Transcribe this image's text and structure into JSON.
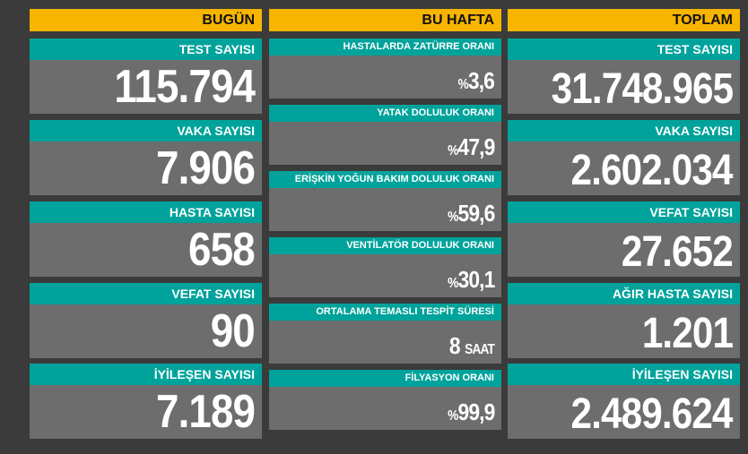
{
  "columns": [
    {
      "title": "BUGÜN",
      "cards": [
        {
          "label": "TEST SAYISI",
          "value": "115.794"
        },
        {
          "label": "VAKA SAYISI",
          "value": "7.906"
        },
        {
          "label": "HASTA SAYISI",
          "value": "658"
        },
        {
          "label": "VEFAT SAYISI",
          "value": "90"
        },
        {
          "label": "İYİLEŞEN SAYISI",
          "value": "7.189"
        }
      ]
    },
    {
      "title": "BU HAFTA",
      "cards": [
        {
          "label": "HASTALARDA ZATÜRRE ORANI",
          "prefix": "%",
          "value": "3,6"
        },
        {
          "label": "YATAK DOLULUK ORANI",
          "prefix": "%",
          "value": "47,9"
        },
        {
          "label": "ERİŞKİN YOĞUN BAKIM DOLULUK ORANI",
          "prefix": "%",
          "value": "59,6"
        },
        {
          "label": "VENTİLATÖR DOLULUK ORANI",
          "prefix": "%",
          "value": "30,1"
        },
        {
          "label": "ORTALAMA TEMASLI TESPİT SÜRESİ",
          "value": "8",
          "suffix": "SAAT"
        },
        {
          "label": "FİLYASYON ORANI",
          "prefix": "%",
          "value": "99,9"
        }
      ]
    },
    {
      "title": "TOPLAM",
      "cards": [
        {
          "label": "TEST SAYISI",
          "value": "31.748.965"
        },
        {
          "label": "VAKA SAYISI",
          "value": "2.602.034"
        },
        {
          "label": "VEFAT SAYISI",
          "value": "27.652"
        },
        {
          "label": "AĞIR HASTA SAYISI",
          "value": "1.201"
        },
        {
          "label": "İYİLEŞEN SAYISI",
          "value": "2.489.624"
        }
      ]
    }
  ]
}
